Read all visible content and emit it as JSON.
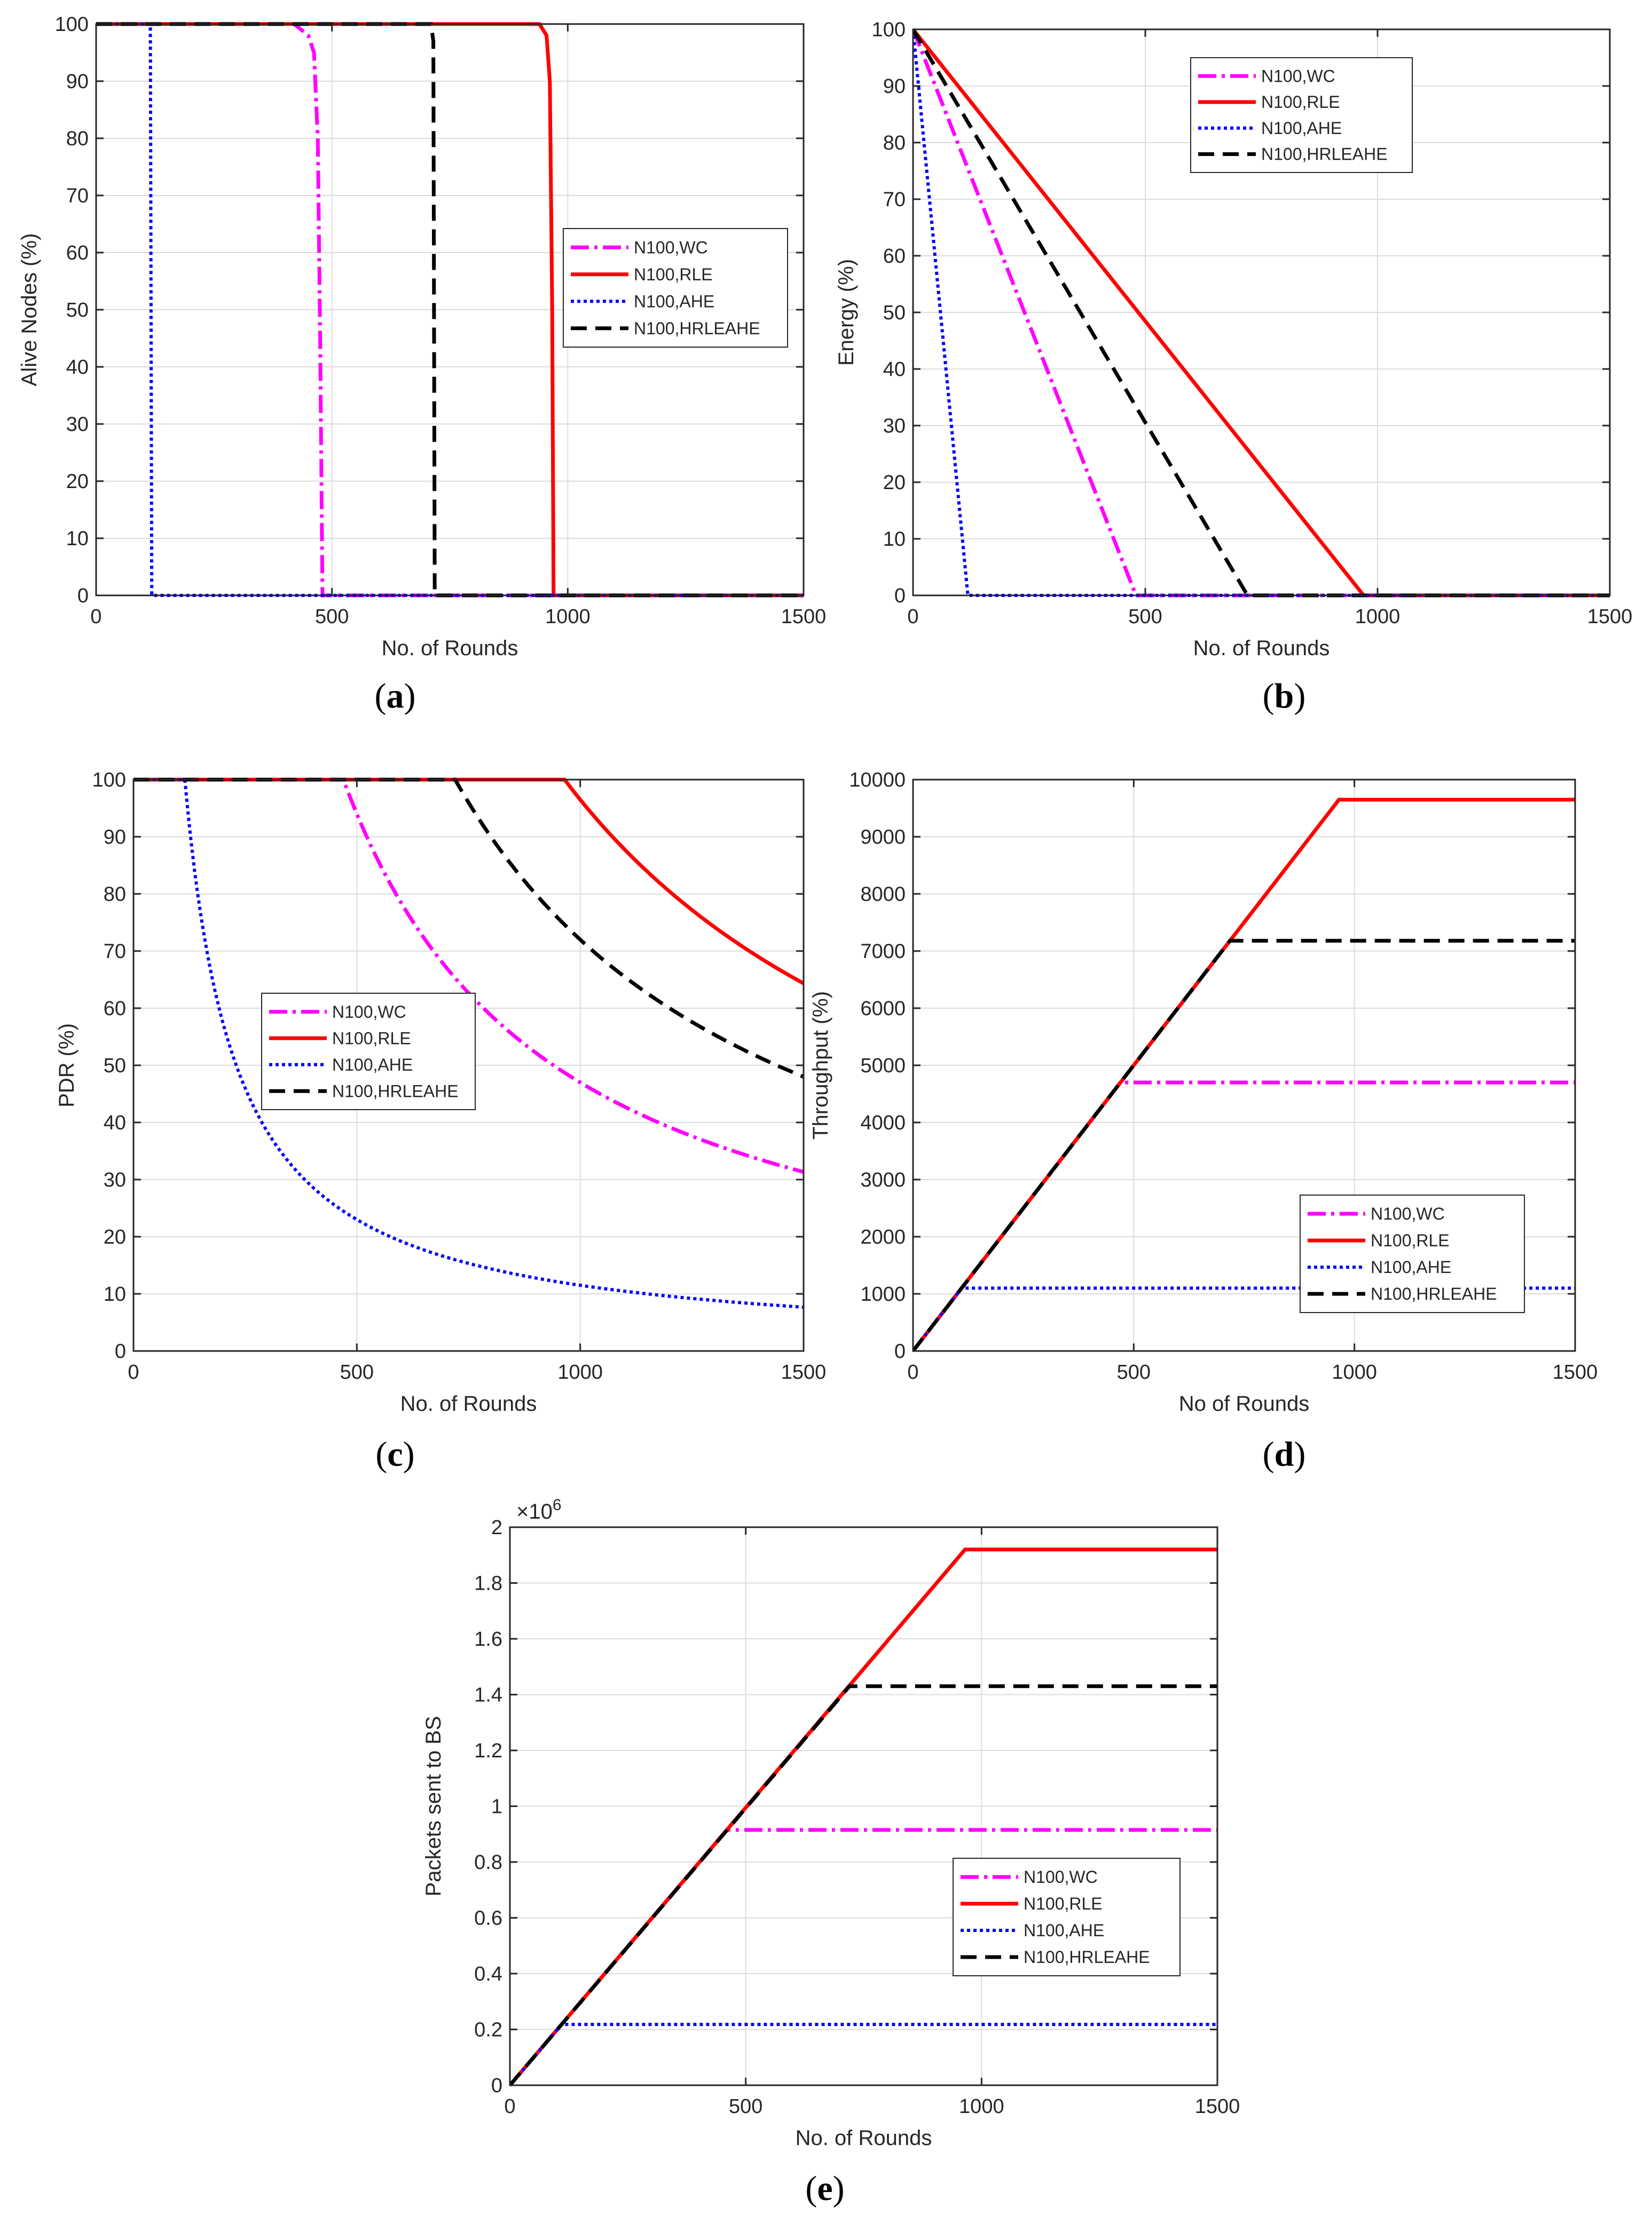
{
  "series_styles": {
    "WC": {
      "color": "#ff00ff",
      "dash": "34 10 6 10",
      "legend": "N100,WC"
    },
    "RLE": {
      "color": "#ff0000",
      "dash": "",
      "legend": "N100,RLE"
    },
    "AHE": {
      "color": "#0000ff",
      "dash": "6 6",
      "legend": "N100,AHE"
    },
    "HRLEAHE": {
      "color": "#000000",
      "dash": "30 16",
      "legend": "N100,HRLEAHE"
    }
  },
  "chart_data": [
    {
      "id": "a",
      "type": "line",
      "caption": "a",
      "caption_pre": "(",
      "caption_post": ")",
      "xlabel": "No. of Rounds",
      "ylabel": "Alive Nodes (%)",
      "xlim": [
        0,
        1500
      ],
      "ylim": [
        0,
        100
      ],
      "xticks": [
        0,
        500,
        1000,
        1500
      ],
      "yticks": [
        0,
        10,
        20,
        30,
        40,
        50,
        60,
        70,
        80,
        90,
        100
      ],
      "legend_position": "center-right",
      "series": [
        {
          "key": "WC",
          "name": "N100,WC",
          "x": [
            0,
            420,
            450,
            462,
            470,
            475,
            480,
            1500
          ],
          "y": [
            100,
            100,
            98,
            95,
            80,
            45,
            0,
            0
          ]
        },
        {
          "key": "RLE",
          "name": "N100,RLE",
          "x": [
            0,
            940,
            955,
            962,
            967,
            970,
            1500
          ],
          "y": [
            100,
            100,
            98,
            90,
            50,
            0,
            0
          ]
        },
        {
          "key": "AHE",
          "name": "N100,AHE",
          "x": [
            0,
            115,
            118,
            1500
          ],
          "y": [
            100,
            100,
            0,
            0
          ]
        },
        {
          "key": "HRLEAHE",
          "name": "N100,HRLEAHE",
          "x": [
            0,
            710,
            715,
            718,
            1500
          ],
          "y": [
            100,
            100,
            97,
            0,
            0
          ]
        }
      ]
    },
    {
      "id": "b",
      "type": "line",
      "caption": "b",
      "caption_pre": "(",
      "caption_post": ")",
      "xlabel": "No. of Rounds",
      "ylabel": "Energy (%)",
      "xlim": [
        0,
        1500
      ],
      "ylim": [
        0,
        100
      ],
      "xticks": [
        0,
        500,
        1000,
        1500
      ],
      "yticks": [
        0,
        10,
        20,
        30,
        40,
        50,
        60,
        70,
        80,
        90,
        100
      ],
      "legend_position": "top-center",
      "series": [
        {
          "key": "WC",
          "name": "N100,WC",
          "x": [
            0,
            480,
            1500
          ],
          "y": [
            100,
            0,
            0
          ]
        },
        {
          "key": "RLE",
          "name": "N100,RLE",
          "x": [
            0,
            970,
            1500
          ],
          "y": [
            100,
            0,
            0
          ]
        },
        {
          "key": "AHE",
          "name": "N100,AHE",
          "x": [
            0,
            118,
            1500
          ],
          "y": [
            100,
            0,
            0
          ]
        },
        {
          "key": "HRLEAHE",
          "name": "N100,HRLEAHE",
          "x": [
            0,
            720,
            1500
          ],
          "y": [
            100,
            0,
            0
          ]
        }
      ]
    },
    {
      "id": "c",
      "type": "line",
      "caption": "c",
      "caption_pre": "(",
      "caption_post": ")",
      "xlabel": "No. of Rounds",
      "ylabel": "PDR (%)",
      "xlim": [
        0,
        1500
      ],
      "ylim": [
        0,
        100
      ],
      "xticks": [
        0,
        500,
        1000,
        1500
      ],
      "yticks": [
        0,
        10,
        20,
        30,
        40,
        50,
        60,
        70,
        80,
        90,
        100
      ],
      "legend_position": "center-left",
      "series": [
        {
          "key": "WC",
          "name": "N100,WC",
          "curve": {
            "flat_until": 470,
            "end": 1500
          },
          "end_value": 31
        },
        {
          "key": "RLE",
          "name": "N100,RLE",
          "curve": {
            "flat_until": 965,
            "end": 1500
          },
          "end_value": 64
        },
        {
          "key": "AHE",
          "name": "N100,AHE",
          "curve": {
            "flat_until": 115,
            "end": 1500
          },
          "end_value": 7
        },
        {
          "key": "HRLEAHE",
          "name": "N100,HRLEAHE",
          "curve": {
            "flat_until": 720,
            "end": 1500
          },
          "end_value": 48
        }
      ]
    },
    {
      "id": "d",
      "type": "line",
      "caption": "d",
      "caption_pre": "(",
      "caption_post": ")",
      "xlabel": "No of Rounds",
      "ylabel": "Throughput (%)",
      "xlim": [
        0,
        1500
      ],
      "ylim": [
        0,
        10000
      ],
      "xticks": [
        0,
        500,
        1000,
        1500
      ],
      "yticks": [
        0,
        1000,
        2000,
        3000,
        4000,
        5000,
        6000,
        7000,
        8000,
        9000,
        10000
      ],
      "legend_position": "bottom-right",
      "series": [
        {
          "key": "WC",
          "name": "N100,WC",
          "x": [
            0,
            470,
            1500
          ],
          "y": [
            0,
            4700,
            4700
          ]
        },
        {
          "key": "RLE",
          "name": "N100,RLE",
          "x": [
            0,
            965,
            1500
          ],
          "y": [
            0,
            9650,
            9650
          ]
        },
        {
          "key": "AHE",
          "name": "N100,AHE",
          "x": [
            0,
            110,
            1500
          ],
          "y": [
            0,
            1100,
            1100
          ]
        },
        {
          "key": "HRLEAHE",
          "name": "N100,HRLEAHE",
          "x": [
            0,
            718,
            1500
          ],
          "y": [
            0,
            7180,
            7180
          ]
        }
      ]
    },
    {
      "id": "e",
      "type": "line",
      "caption": "e",
      "caption_pre": "(",
      "caption_post": ")",
      "xlabel": "No. of Rounds",
      "ylabel": "Packets sent to BS",
      "y_multiplier_base": "×10",
      "y_multiplier_exp": "6",
      "xlim": [
        0,
        1500
      ],
      "ylim": [
        0,
        2
      ],
      "xticks": [
        0,
        500,
        1000,
        1500
      ],
      "yticks": [
        0,
        0.2,
        0.4,
        0.6,
        0.8,
        1,
        1.2,
        1.4,
        1.6,
        1.8,
        2
      ],
      "legend_position": "bottom-right",
      "series": [
        {
          "key": "WC",
          "name": "N100,WC",
          "x": [
            0,
            460,
            1500
          ],
          "y": [
            0,
            0.915,
            0.915
          ]
        },
        {
          "key": "RLE",
          "name": "N100,RLE",
          "x": [
            0,
            965,
            1500
          ],
          "y": [
            0,
            1.92,
            1.92
          ]
        },
        {
          "key": "AHE",
          "name": "N100,AHE",
          "x": [
            0,
            110,
            1500
          ],
          "y": [
            0,
            0.218,
            0.218
          ]
        },
        {
          "key": "HRLEAHE",
          "name": "N100,HRLEAHE",
          "x": [
            0,
            720,
            1500
          ],
          "y": [
            0,
            1.43,
            1.43
          ]
        }
      ]
    }
  ]
}
